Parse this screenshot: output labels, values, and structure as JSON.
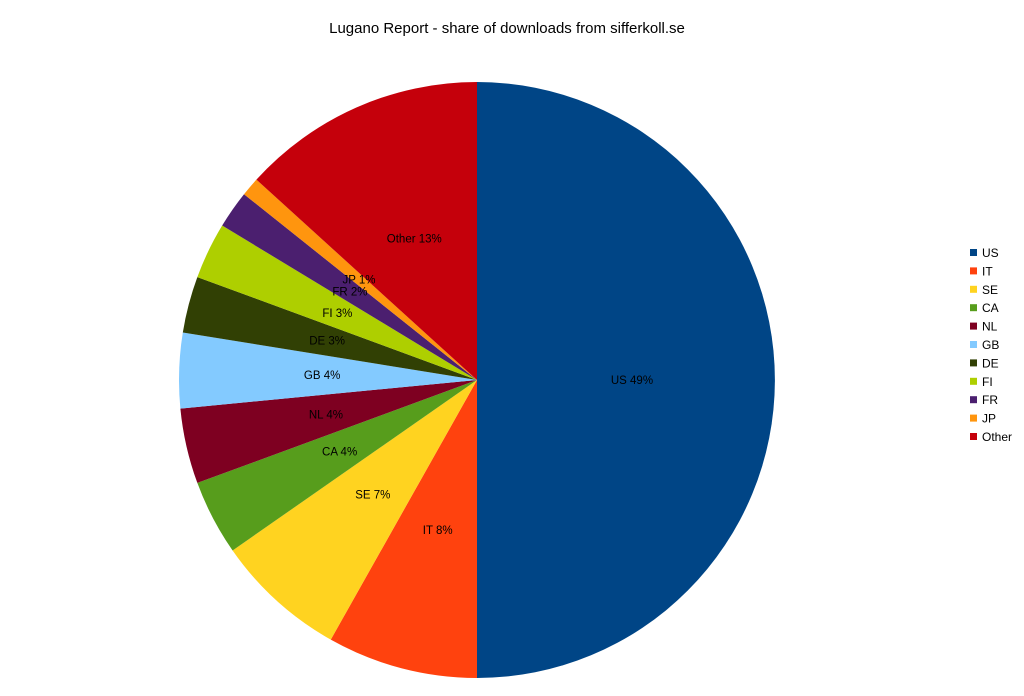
{
  "chart_data": {
    "type": "pie",
    "title": "Lugano Report - share of downloads from sifferkoll.se",
    "legend_position": "right",
    "categories": [
      "US",
      "IT",
      "SE",
      "CA",
      "NL",
      "GB",
      "DE",
      "FI",
      "FR",
      "JP",
      "Other"
    ],
    "values": [
      49,
      8,
      7,
      4,
      4,
      4,
      3,
      3,
      2,
      1,
      13
    ],
    "labels": [
      "US 49%",
      "IT 8%",
      "SE 7%",
      "CA 4%",
      "NL 4%",
      "GB 4%",
      "DE 3%",
      "FI 3%",
      "FR 2%",
      "JP 1%",
      "Other 13%"
    ],
    "colors": [
      "#004586",
      "#ff420e",
      "#ffd320",
      "#579d1c",
      "#7e0021",
      "#83caff",
      "#314004",
      "#aecf00",
      "#4b1f6f",
      "#ff950e",
      "#c5000b"
    ],
    "start_angle": "12 o'clock",
    "direction": "clockwise"
  }
}
